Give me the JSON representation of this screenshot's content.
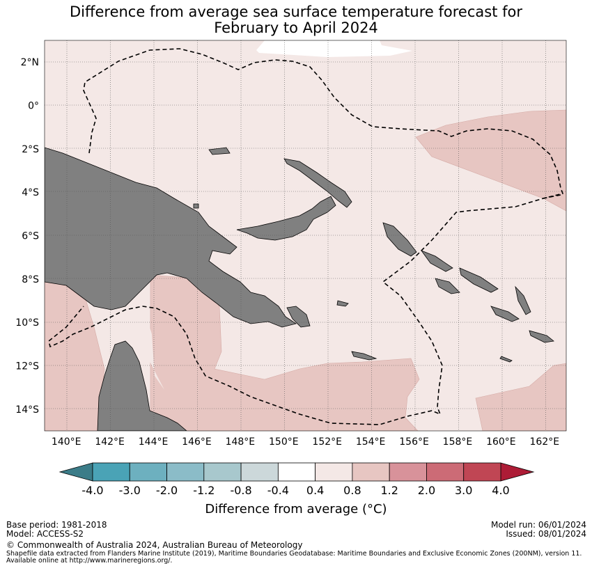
{
  "title": {
    "line1": "Difference from average sea surface temperature forecast for",
    "line2": "February to April 2024"
  },
  "map": {
    "lon_labels": [
      "140°E",
      "142°E",
      "144°E",
      "146°E",
      "148°E",
      "150°E",
      "152°E",
      "154°E",
      "156°E",
      "158°E",
      "160°E",
      "162°E"
    ],
    "lat_labels": [
      "2°N",
      "0°",
      "2°S",
      "4°S",
      "6°S",
      "8°S",
      "10°S",
      "12°S",
      "14°S"
    ],
    "lon_range": [
      139,
      163
    ],
    "lat_range": [
      -15,
      3
    ],
    "colors": {
      "ocean_background": "#f4e8e6",
      "warm_anomaly": "#e7c6c2",
      "land": "#808080",
      "near_zero": "#ffffff"
    }
  },
  "colorbar": {
    "ticks": [
      "-4.0",
      "-3.0",
      "-2.0",
      "-1.2",
      "-0.8",
      "-0.4",
      "0.4",
      "0.8",
      "1.2",
      "2.0",
      "3.0",
      "4.0"
    ],
    "under_color": "#3b7c88",
    "over_color": "#ad1c36",
    "colors": [
      "#4aa3b6",
      "#6db0bf",
      "#8bbcc8",
      "#a8c8cd",
      "#ccd8da",
      "#ffffff",
      "#f4e8e6",
      "#e7c6c2",
      "#d8929a",
      "#cc6b76",
      "#c04654"
    ],
    "label": "Difference from average (°C)"
  },
  "footer": {
    "base_period": "Base period: 1981-2018",
    "model": "Model: ACCESS-S2",
    "model_run": "Model run: 06/01/2024",
    "issued": "Issued: 08/01/2024",
    "copyright": "© Commonwealth of Australia 2024, Australian Bureau of Meteorology",
    "shapefile_line1": "Shapefile data extracted from Flanders Marine Institute (2019), Maritime Boundaries Geodatabase: Maritime Boundaries and Exclusive Economic Zones (200NM), version 11.",
    "shapefile_line2": "Available online at http://www.marineregions.org/."
  }
}
